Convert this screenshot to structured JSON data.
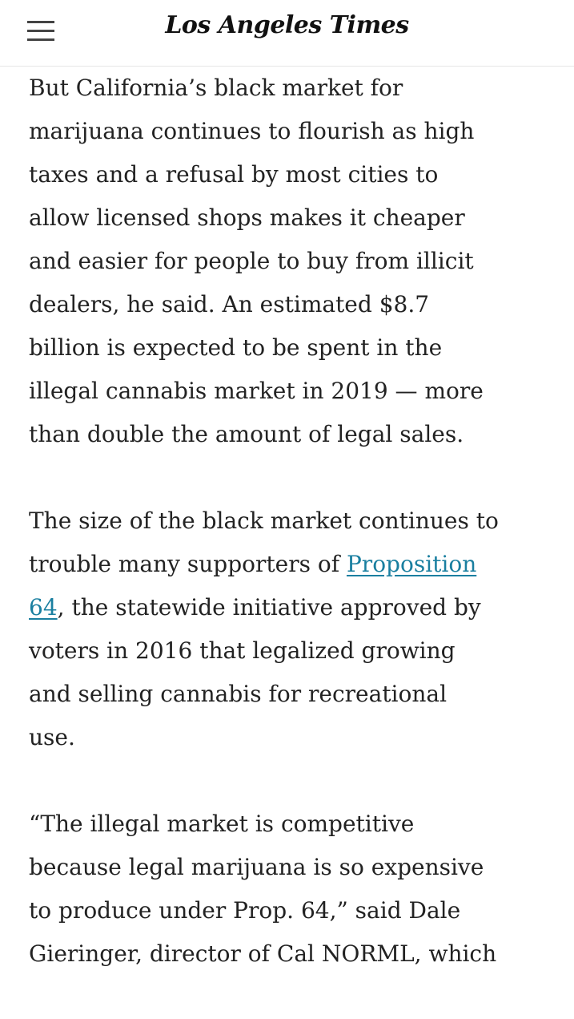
{
  "header": {
    "logo": "Los Angeles Times",
    "menu_icon": "hamburger-menu-icon"
  },
  "article": {
    "p1": [
      "But California’s black market for",
      "marijuana continues to flourish as high",
      "taxes and a refusal by most cities to",
      "allow licensed shops makes it cheaper",
      "and easier for people to buy from illicit",
      "dealers, he said. An estimated $8.7",
      "billion is expected to be spent in the",
      "illegal cannabis market in 2019 — more",
      "than double the amount of legal sales."
    ],
    "p2": {
      "l1": "The size of the black market continues to",
      "l2_pre": "trouble many supporters of ",
      "link_part1": "Proposition",
      "link_part2": "64",
      "l3_post": ", the statewide initiative approved by",
      "l4": "voters in 2016 that legalized growing",
      "l5": "and selling cannabis for recreational",
      "l6": "use."
    },
    "p3": [
      "“The illegal market is competitive",
      "because legal marijuana is so expensive",
      "to produce under Prop. 64,” said Dale",
      "Gieringer, director of Cal NORML, which"
    ],
    "link_color": "#1a7fa0"
  }
}
